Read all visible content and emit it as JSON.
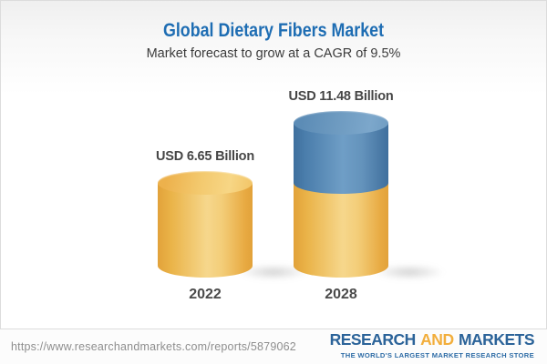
{
  "header": {
    "title": "Global Dietary Fibers Market",
    "subtitle": "Market forecast to grow at a CAGR of 9.5%"
  },
  "chart_data": {
    "type": "bar",
    "title": "Global Dietary Fibers Market",
    "subtitle": "Market forecast to grow at a CAGR of 9.5%",
    "categories": [
      "2022",
      "2028"
    ],
    "values": [
      6.65,
      11.48
    ],
    "unit": "USD Billion",
    "value_labels": [
      "USD 6.65 Billion",
      "USD 11.48 Billion"
    ],
    "cagr_pct": 9.5,
    "segments_2028": {
      "base": 6.65,
      "growth": 4.83
    },
    "ylim": [
      0,
      12
    ],
    "grid": false,
    "legend": "none",
    "colors": {
      "base_segment": "#f0bc57",
      "growth_segment": "#5c8cb6"
    }
  },
  "footer": {
    "url": "https://www.researchandmarkets.com/reports/5879062",
    "logo": {
      "word1": "RESEARCH",
      "word2": "AND",
      "word3": "MARKETS",
      "tagline": "THE WORLD'S LARGEST MARKET RESEARCH STORE"
    }
  },
  "colors": {
    "title_blue": "#1e6db3",
    "bar_gold": "#f0bc57",
    "bar_blue": "#5c8cb6",
    "logo_blue": "#2b6399",
    "logo_gold": "#f2ae3c"
  }
}
